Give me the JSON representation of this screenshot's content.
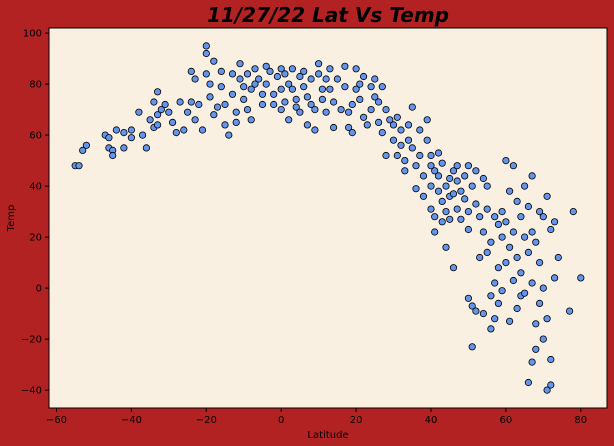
{
  "chart_data": {
    "type": "scatter",
    "title": "11/27/22 Lat Vs Temp",
    "xlabel": "Latitude",
    "ylabel": "Temp",
    "xlim": [
      -62,
      87
    ],
    "ylim": [
      -47,
      102
    ],
    "xticks": [
      -60,
      -40,
      -20,
      0,
      20,
      40,
      60,
      80
    ],
    "yticks": [
      -40,
      -20,
      0,
      20,
      40,
      60,
      80,
      100
    ],
    "grid": false,
    "colors": {
      "figure_bg": "#b22222",
      "plot_bg": "#faf0e1",
      "marker_fill": "#6495ed",
      "marker_edge": "#000000"
    },
    "points": [
      [
        -55,
        48
      ],
      [
        -54,
        48
      ],
      [
        -53,
        54
      ],
      [
        -52,
        56
      ],
      [
        -47,
        60
      ],
      [
        -46,
        59
      ],
      [
        -46,
        55
      ],
      [
        -45,
        54
      ],
      [
        -45,
        52
      ],
      [
        -44,
        62
      ],
      [
        -42,
        61
      ],
      [
        -42,
        55
      ],
      [
        -40,
        59
      ],
      [
        -40,
        62
      ],
      [
        -38,
        69
      ],
      [
        -37,
        60
      ],
      [
        -36,
        55
      ],
      [
        -35,
        66
      ],
      [
        -34,
        73
      ],
      [
        -34,
        63
      ],
      [
        -33,
        77
      ],
      [
        -33,
        68
      ],
      [
        -33,
        64
      ],
      [
        -32,
        70
      ],
      [
        -31,
        72
      ],
      [
        -30,
        69
      ],
      [
        -29,
        65
      ],
      [
        -28,
        61
      ],
      [
        -27,
        73
      ],
      [
        -26,
        62
      ],
      [
        -25,
        69
      ],
      [
        -24,
        85
      ],
      [
        -24,
        73
      ],
      [
        -23,
        82
      ],
      [
        -23,
        66
      ],
      [
        -22,
        72
      ],
      [
        -21,
        62
      ],
      [
        -20,
        95
      ],
      [
        -20,
        92
      ],
      [
        -20,
        84
      ],
      [
        -19,
        80
      ],
      [
        -19,
        75
      ],
      [
        -18,
        68
      ],
      [
        -18,
        89
      ],
      [
        -17,
        71
      ],
      [
        -16,
        85
      ],
      [
        -16,
        79
      ],
      [
        -15,
        72
      ],
      [
        -15,
        64
      ],
      [
        -14,
        60
      ],
      [
        -13,
        84
      ],
      [
        -13,
        76
      ],
      [
        -12,
        69
      ],
      [
        -12,
        65
      ],
      [
        -11,
        88
      ],
      [
        -11,
        82
      ],
      [
        -10,
        79
      ],
      [
        -10,
        74
      ],
      [
        -9,
        70
      ],
      [
        -9,
        84
      ],
      [
        -8,
        78
      ],
      [
        -8,
        66
      ],
      [
        -7,
        86
      ],
      [
        -7,
        80
      ],
      [
        -6,
        82
      ],
      [
        -5,
        76
      ],
      [
        -5,
        72
      ],
      [
        -4,
        87
      ],
      [
        -4,
        80
      ],
      [
        -3,
        85
      ],
      [
        -2,
        76
      ],
      [
        -2,
        72
      ],
      [
        -1,
        83
      ],
      [
        0,
        86
      ],
      [
        0,
        78
      ],
      [
        0,
        70
      ],
      [
        1,
        84
      ],
      [
        1,
        73
      ],
      [
        2,
        80
      ],
      [
        2,
        66
      ],
      [
        3,
        86
      ],
      [
        3,
        78
      ],
      [
        4,
        74
      ],
      [
        4,
        71
      ],
      [
        5,
        83
      ],
      [
        5,
        69
      ],
      [
        6,
        85
      ],
      [
        6,
        79
      ],
      [
        7,
        64
      ],
      [
        7,
        75
      ],
      [
        8,
        72
      ],
      [
        8,
        82
      ],
      [
        9,
        70
      ],
      [
        9,
        62
      ],
      [
        10,
        88
      ],
      [
        10,
        84
      ],
      [
        11,
        78
      ],
      [
        11,
        74
      ],
      [
        12,
        82
      ],
      [
        12,
        69
      ],
      [
        13,
        86
      ],
      [
        13,
        78
      ],
      [
        14,
        73
      ],
      [
        14,
        63
      ],
      [
        15,
        82
      ],
      [
        16,
        70
      ],
      [
        17,
        87
      ],
      [
        17,
        79
      ],
      [
        18,
        69
      ],
      [
        18,
        63
      ],
      [
        19,
        72
      ],
      [
        19,
        61
      ],
      [
        20,
        86
      ],
      [
        20,
        78
      ],
      [
        21,
        80
      ],
      [
        21,
        74
      ],
      [
        22,
        67
      ],
      [
        22,
        83
      ],
      [
        23,
        64
      ],
      [
        24,
        79
      ],
      [
        24,
        70
      ],
      [
        25,
        82
      ],
      [
        25,
        75
      ],
      [
        26,
        73
      ],
      [
        26,
        65
      ],
      [
        27,
        79
      ],
      [
        27,
        61
      ],
      [
        28,
        70
      ],
      [
        28,
        52
      ],
      [
        29,
        66
      ],
      [
        30,
        64
      ],
      [
        30,
        58
      ],
      [
        31,
        52
      ],
      [
        31,
        67
      ],
      [
        32,
        62
      ],
      [
        32,
        56
      ],
      [
        33,
        50
      ],
      [
        33,
        46
      ],
      [
        34,
        64
      ],
      [
        34,
        58
      ],
      [
        35,
        71
      ],
      [
        35,
        55
      ],
      [
        36,
        48
      ],
      [
        36,
        39
      ],
      [
        37,
        62
      ],
      [
        37,
        52
      ],
      [
        38,
        44
      ],
      [
        38,
        36
      ],
      [
        39,
        66
      ],
      [
        39,
        58
      ],
      [
        40,
        52
      ],
      [
        40,
        48
      ],
      [
        40,
        40
      ],
      [
        40,
        31
      ],
      [
        41,
        28
      ],
      [
        41,
        22
      ],
      [
        41,
        46
      ],
      [
        42,
        53
      ],
      [
        42,
        44
      ],
      [
        42,
        38
      ],
      [
        43,
        34
      ],
      [
        43,
        26
      ],
      [
        43,
        49
      ],
      [
        44,
        40
      ],
      [
        44,
        30
      ],
      [
        44,
        16
      ],
      [
        45,
        43
      ],
      [
        45,
        36
      ],
      [
        45,
        27
      ],
      [
        46,
        46
      ],
      [
        46,
        37
      ],
      [
        46,
        8
      ],
      [
        47,
        48
      ],
      [
        47,
        42
      ],
      [
        47,
        31
      ],
      [
        48,
        38
      ],
      [
        48,
        27
      ],
      [
        49,
        44
      ],
      [
        49,
        35
      ],
      [
        50,
        48
      ],
      [
        50,
        30
      ],
      [
        50,
        23
      ],
      [
        50,
        -4
      ],
      [
        51,
        40
      ],
      [
        51,
        -7
      ],
      [
        51,
        -23
      ],
      [
        52,
        46
      ],
      [
        52,
        33
      ],
      [
        52,
        -9
      ],
      [
        53,
        28
      ],
      [
        53,
        12
      ],
      [
        54,
        43
      ],
      [
        54,
        22
      ],
      [
        54,
        -10
      ],
      [
        55,
        40
      ],
      [
        55,
        31
      ],
      [
        55,
        14
      ],
      [
        56,
        18
      ],
      [
        56,
        -3
      ],
      [
        56,
        -16
      ],
      [
        57,
        28
      ],
      [
        57,
        2
      ],
      [
        57,
        -12
      ],
      [
        58,
        25
      ],
      [
        58,
        8
      ],
      [
        58,
        -6
      ],
      [
        59,
        30
      ],
      [
        59,
        20
      ],
      [
        59,
        -1
      ],
      [
        60,
        50
      ],
      [
        60,
        26
      ],
      [
        60,
        10
      ],
      [
        61,
        38
      ],
      [
        61,
        16
      ],
      [
        61,
        -13
      ],
      [
        62,
        48
      ],
      [
        62,
        22
      ],
      [
        62,
        3
      ],
      [
        63,
        34
      ],
      [
        63,
        12
      ],
      [
        63,
        -8
      ],
      [
        64,
        28
      ],
      [
        64,
        6
      ],
      [
        64,
        -3
      ],
      [
        65,
        40
      ],
      [
        65,
        20
      ],
      [
        65,
        -2
      ],
      [
        66,
        32
      ],
      [
        66,
        14
      ],
      [
        66,
        -37
      ],
      [
        67,
        44
      ],
      [
        67,
        22
      ],
      [
        67,
        2
      ],
      [
        67,
        -29
      ],
      [
        68,
        18
      ],
      [
        68,
        -14
      ],
      [
        68,
        -24
      ],
      [
        69,
        30
      ],
      [
        69,
        10
      ],
      [
        69,
        -6
      ],
      [
        70,
        28
      ],
      [
        70,
        0
      ],
      [
        70,
        -20
      ],
      [
        71,
        36
      ],
      [
        71,
        -12
      ],
      [
        71,
        -40
      ],
      [
        72,
        23
      ],
      [
        72,
        -28
      ],
      [
        72,
        -38
      ],
      [
        73,
        26
      ],
      [
        73,
        4
      ],
      [
        74,
        12
      ],
      [
        77,
        -9
      ],
      [
        78,
        30
      ],
      [
        80,
        4
      ]
    ]
  }
}
